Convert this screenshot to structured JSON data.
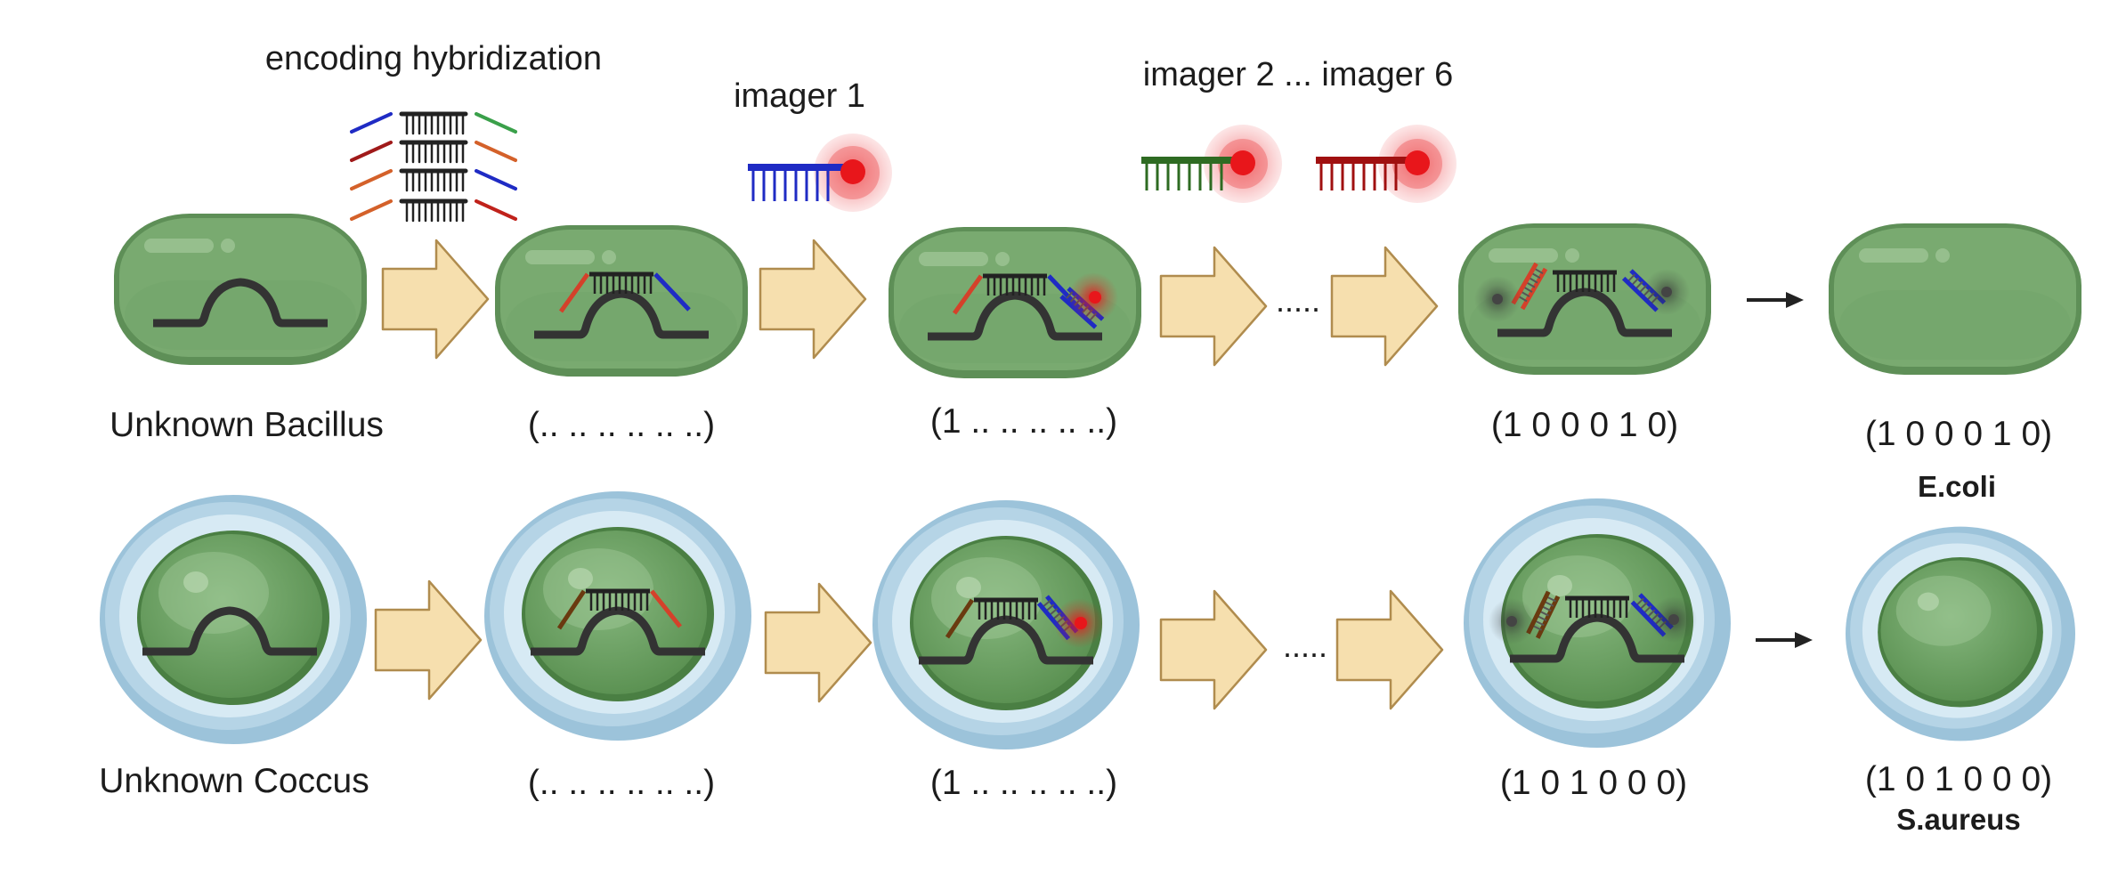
{
  "labels": {
    "encoding": "encoding hybridization",
    "imager1": "imager 1",
    "imager2to6": "imager 2 ... imager 6",
    "ellipsis_top": ".....",
    "ellipsis_bottom": "....."
  },
  "rows": [
    {
      "name": "Unknown Bacillus",
      "codes": [
        "(.. .. .. .. .. ..)",
        "(1 .. .. .. .. ..)",
        "(1 0 0 0 1 0)",
        "(1 0 0 0 1 0)"
      ],
      "species": "E.coli"
    },
    {
      "name": "Unknown Coccus",
      "codes": [
        "(.. .. .. .. .. ..)",
        "(1 .. .. .. .. ..)",
        "(1 0 1 0 0 0)",
        "(1 0 1 0 0 0)"
      ],
      "species": "S.aureus"
    }
  ],
  "colors": {
    "cell_green": "#77a86f",
    "cell_dark": "#5b8c55",
    "capsule_blue": "#9cc3da",
    "capsule_light": "#d7eaf4",
    "arrow_fill": "#f5dfae",
    "arrow_stroke": "#b18f52",
    "strand_dark": "#333333",
    "probe_blue": "#1f2bc4",
    "probe_red": "#c0392b",
    "probe_orange": "#d4612a",
    "probe_green": "#2e7d32",
    "probe_darkred": "#a01010",
    "probe_brown": "#7a4a1a",
    "glow_red": "#e8161b"
  }
}
